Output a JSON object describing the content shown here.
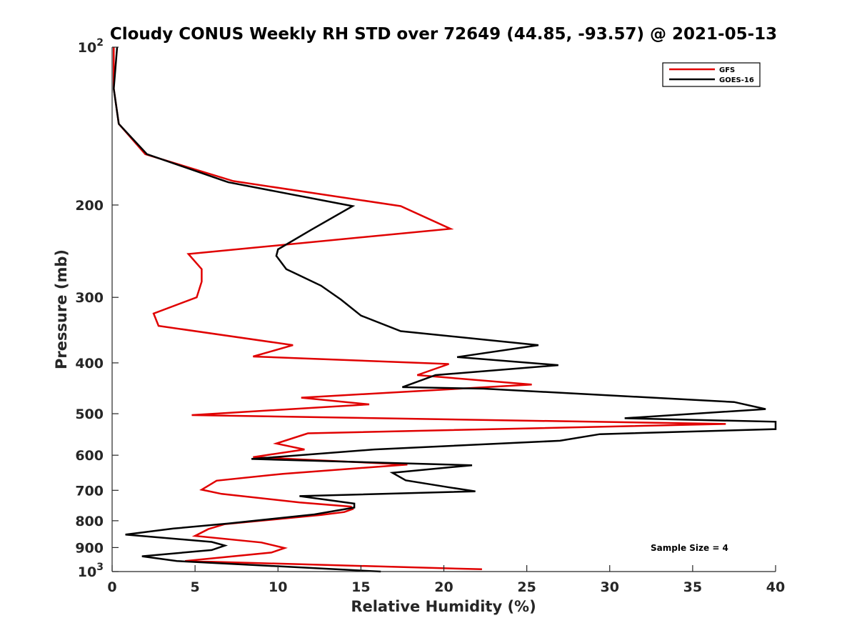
{
  "chart_data": {
    "type": "line",
    "title": "Cloudy CONUS Weekly RH STD over 72649 (44.85, -93.57) @ 2021-05-13",
    "xlabel": "Relative Humidity (%)",
    "ylabel": "Pressure (mb)",
    "xlim": [
      0,
      40
    ],
    "ylim": [
      100,
      1000
    ],
    "yscale": "log",
    "y_reversed": true,
    "grid": false,
    "legend_position": "top-right",
    "x_ticks": [
      "0",
      "5",
      "10",
      "15",
      "20",
      "25",
      "30",
      "35",
      "40"
    ],
    "y_ticks": [
      {
        "value": 100,
        "base": "10",
        "exp": "2"
      },
      {
        "value": 200,
        "label": "200"
      },
      {
        "value": 300,
        "label": "300"
      },
      {
        "value": 400,
        "label": "400"
      },
      {
        "value": 500,
        "label": "500"
      },
      {
        "value": 600,
        "label": "600"
      },
      {
        "value": 700,
        "label": "700"
      },
      {
        "value": 800,
        "label": "800"
      },
      {
        "value": 900,
        "label": "900"
      },
      {
        "value": 1000,
        "base": "10",
        "exp": "3"
      }
    ],
    "annotation": "Sample Size = 4",
    "series": [
      {
        "name": "GFS",
        "color": "#e00000",
        "points": [
          [
            0.1,
            100
          ],
          [
            0.1,
            120
          ],
          [
            0.4,
            140
          ],
          [
            2.0,
            160
          ],
          [
            7.3,
            180
          ],
          [
            17.4,
            201
          ],
          [
            20.4,
            222
          ],
          [
            4.6,
            248
          ],
          [
            5.4,
            265
          ],
          [
            5.4,
            280
          ],
          [
            5.1,
            300
          ],
          [
            2.5,
            322
          ],
          [
            2.8,
            340
          ],
          [
            10.9,
            370
          ],
          [
            8.5,
            389
          ],
          [
            20.3,
            402
          ],
          [
            18.4,
            422
          ],
          [
            25.3,
            440
          ],
          [
            11.4,
            466
          ],
          [
            15.5,
            480
          ],
          [
            4.8,
            503
          ],
          [
            37.0,
            523
          ],
          [
            11.8,
            545
          ],
          [
            9.9,
            570
          ],
          [
            11.6,
            585
          ],
          [
            8.5,
            605
          ],
          [
            17.8,
            625
          ],
          [
            10.3,
            651
          ],
          [
            6.3,
            671
          ],
          [
            5.4,
            698
          ],
          [
            6.6,
            711
          ],
          [
            11.3,
            738
          ],
          [
            14.4,
            752
          ],
          [
            14.5,
            760
          ],
          [
            14.0,
            770
          ],
          [
            12.6,
            780
          ],
          [
            6.8,
            812
          ],
          [
            5.8,
            830
          ],
          [
            5.0,
            855
          ],
          [
            9.0,
            880
          ],
          [
            10.4,
            902
          ],
          [
            9.6,
            920
          ],
          [
            4.4,
            955
          ],
          [
            22.3,
            990
          ]
        ]
      },
      {
        "name": "GOES-16",
        "color": "#000000",
        "points": [
          [
            0.3,
            100
          ],
          [
            0.1,
            120
          ],
          [
            0.4,
            140
          ],
          [
            2.1,
            160
          ],
          [
            7.0,
            181
          ],
          [
            14.5,
            201
          ],
          [
            12.0,
            223
          ],
          [
            10.0,
            243
          ],
          [
            9.9,
            250
          ],
          [
            10.5,
            265
          ],
          [
            12.6,
            285
          ],
          [
            13.8,
            303
          ],
          [
            15.0,
            325
          ],
          [
            17.4,
            348
          ],
          [
            25.7,
            370
          ],
          [
            20.8,
            390
          ],
          [
            26.9,
            404
          ],
          [
            19.5,
            422
          ],
          [
            17.5,
            445
          ],
          [
            22.4,
            448
          ],
          [
            37.5,
            475
          ],
          [
            39.4,
            490
          ],
          [
            30.9,
            510
          ],
          [
            40.0,
            518
          ],
          [
            40.0,
            535
          ],
          [
            29.4,
            547
          ],
          [
            27.0,
            563
          ],
          [
            15.8,
            585
          ],
          [
            8.4,
            610
          ],
          [
            21.7,
            627
          ],
          [
            16.9,
            648
          ],
          [
            17.7,
            670
          ],
          [
            20.2,
            690
          ],
          [
            21.9,
            703
          ],
          [
            11.3,
            718
          ],
          [
            14.6,
            742
          ],
          [
            14.6,
            755
          ],
          [
            12.2,
            778
          ],
          [
            7.0,
            810
          ],
          [
            3.7,
            828
          ],
          [
            0.8,
            850
          ],
          [
            6.0,
            878
          ],
          [
            6.8,
            892
          ],
          [
            6.0,
            910
          ],
          [
            1.8,
            935
          ],
          [
            3.9,
            955
          ],
          [
            16.2,
            1000
          ]
        ]
      }
    ]
  }
}
